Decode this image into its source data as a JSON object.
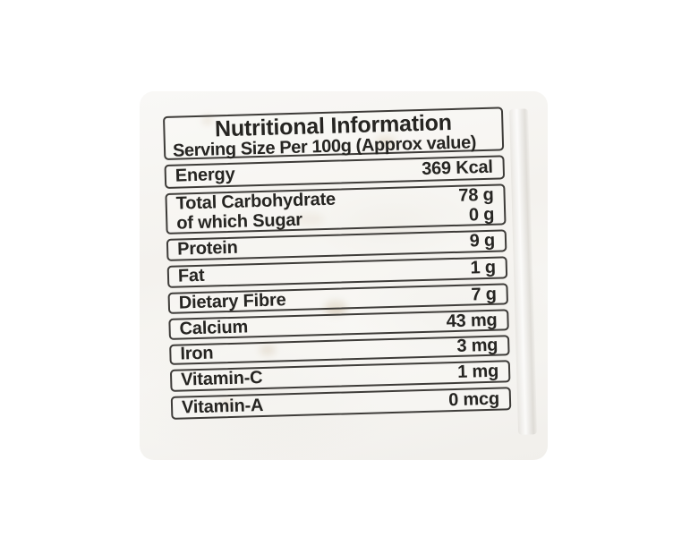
{
  "label": {
    "title": "Nutritional Information",
    "serving_line": "Serving Size Per 100g (Approx value)",
    "rows": [
      {
        "name": "Energy",
        "value": "369 Kcal"
      },
      {
        "name": "Total Carbohydrate",
        "value": "78 g",
        "sub_name": "of which Sugar",
        "sub_value": "0 g"
      },
      {
        "name": "Protein",
        "value": "9 g"
      },
      {
        "name": "Fat",
        "value": "1 g"
      },
      {
        "name": "Dietary Fibre",
        "value": "7 g"
      },
      {
        "name": "Calcium",
        "value": "43 mg"
      },
      {
        "name": "Iron",
        "value": "3 mg"
      },
      {
        "name": "Vitamin-C",
        "value": "1 mg"
      },
      {
        "name": "Vitamin-A",
        "value": "0 mcg"
      }
    ],
    "colors": {
      "border": "#3e3c39",
      "text": "#262522",
      "bag_background": "#f5f3ef",
      "photo_background": "#ffffff"
    }
  }
}
